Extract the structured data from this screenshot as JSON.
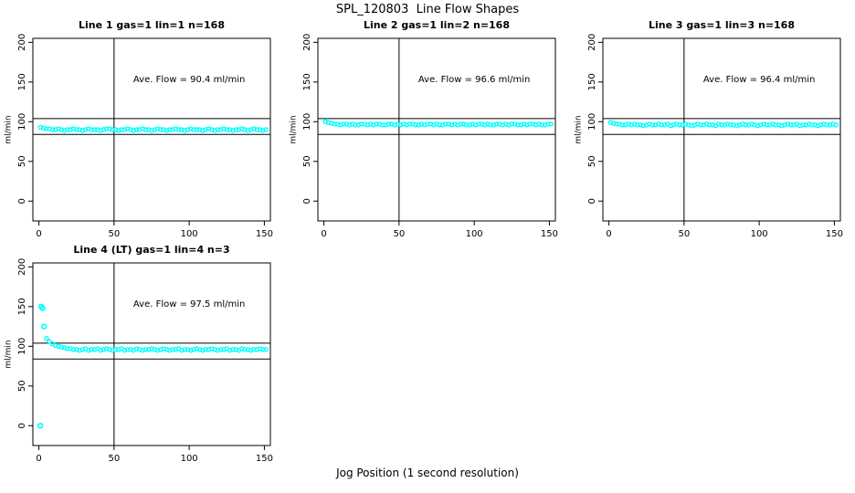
{
  "chart_data": {
    "type": "scatter",
    "title": "SPL_120803  Line Flow Shapes",
    "xlabel": "Jog Position (1 second resolution)",
    "ylabel": "ml/min",
    "xlim": [
      -4,
      154
    ],
    "ylim": [
      -25,
      205
    ],
    "x_ticks": [
      0,
      50,
      100,
      150
    ],
    "y_ticks": [
      0,
      50,
      100,
      150,
      200
    ],
    "grid": false,
    "legend": "none",
    "colors": {
      "points": "#00ffff",
      "axis": "#000000",
      "background": "#ffffff"
    },
    "ref_lines": {
      "h": [
        104,
        84
      ],
      "v": [
        50
      ]
    },
    "annotation_pos": {
      "x": 100,
      "y": 150
    },
    "panels": [
      {
        "title": "Line 1 gas=1 lin=1 n=168",
        "annotation": "Ave. Flow =  90.4  ml/min",
        "ave_flow": 90.4,
        "x_start": 1,
        "x_step": 2,
        "y": [
          93,
          92,
          91,
          91,
          90,
          90,
          91,
          90,
          89,
          90,
          90,
          91,
          90,
          90,
          89,
          90,
          91,
          90,
          90,
          90,
          89,
          90,
          91,
          91,
          90,
          90,
          89,
          90,
          90,
          91,
          90,
          89,
          90,
          90,
          91,
          90,
          90,
          89,
          90,
          91,
          90,
          90,
          89,
          90,
          90,
          91,
          90,
          90,
          89,
          90,
          91,
          90,
          90,
          90,
          89,
          90,
          91,
          90,
          89,
          90,
          90,
          91,
          90,
          90,
          89,
          90,
          90,
          91,
          90,
          89,
          90,
          91,
          90,
          90,
          89,
          90
        ],
        "extra": []
      },
      {
        "title": "Line 2 gas=1 lin=2 n=168",
        "annotation": "Ave. Flow =  96.6  ml/min",
        "ave_flow": 96.6,
        "x_start": 1,
        "x_step": 2,
        "y": [
          100,
          99,
          98,
          97,
          97,
          96,
          97,
          97,
          96,
          97,
          96,
          96,
          97,
          97,
          96,
          97,
          96,
          97,
          97,
          96,
          96,
          97,
          97,
          96,
          97,
          96,
          97,
          96,
          97,
          97,
          96,
          96,
          97,
          96,
          97,
          97,
          96,
          97,
          96,
          96,
          97,
          97,
          96,
          97,
          96,
          97,
          97,
          96,
          96,
          97,
          96,
          97,
          97,
          96,
          97,
          96,
          96,
          97,
          97,
          96,
          97,
          96,
          97,
          97,
          96,
          96,
          97,
          96,
          97,
          97,
          96,
          97,
          96,
          96,
          97,
          97
        ],
        "extra": []
      },
      {
        "title": "Line 3 gas=1 lin=3 n=168",
        "annotation": "Ave. Flow =  96.4  ml/min",
        "ave_flow": 96.4,
        "x_start": 1,
        "x_step": 2,
        "y": [
          99,
          98,
          97,
          97,
          96,
          96,
          97,
          96,
          97,
          96,
          96,
          95,
          96,
          97,
          96,
          96,
          97,
          96,
          96,
          97,
          95,
          96,
          97,
          96,
          96,
          97,
          96,
          95,
          96,
          97,
          96,
          96,
          97,
          96,
          96,
          95,
          97,
          96,
          96,
          97,
          96,
          96,
          95,
          96,
          97,
          96,
          96,
          97,
          96,
          95,
          96,
          97,
          96,
          96,
          97,
          96,
          96,
          95,
          96,
          97,
          96,
          96,
          97,
          95,
          96,
          96,
          97,
          96,
          96,
          95,
          96,
          97,
          96,
          96,
          97,
          96
        ],
        "extra": []
      },
      {
        "title": "Line 4 (LT) gas=1 lin=4 n=3",
        "annotation": "Ave. Flow =  97.5  ml/min",
        "ave_flow": 97.5,
        "x_start": 5,
        "x_step": 2,
        "y": [
          110,
          106,
          103,
          101,
          100,
          99,
          98,
          97,
          97,
          96,
          96,
          95,
          96,
          97,
          95,
          96,
          96,
          97,
          95,
          96,
          97,
          96,
          95,
          96,
          96,
          97,
          95,
          96,
          96,
          95,
          97,
          96,
          95,
          96,
          96,
          97,
          96,
          95,
          96,
          97,
          96,
          95,
          96,
          96,
          97,
          95,
          96,
          96,
          95,
          96,
          97,
          96,
          95,
          96,
          96,
          97,
          96,
          95,
          96,
          96,
          97,
          95,
          96,
          96,
          95,
          97,
          96,
          96,
          95,
          96,
          96,
          97,
          96,
          96
        ],
        "extra": [
          [
            1,
            0
          ],
          [
            1.5,
            150
          ],
          [
            2.5,
            148
          ],
          [
            3.5,
            125
          ]
        ]
      }
    ]
  }
}
